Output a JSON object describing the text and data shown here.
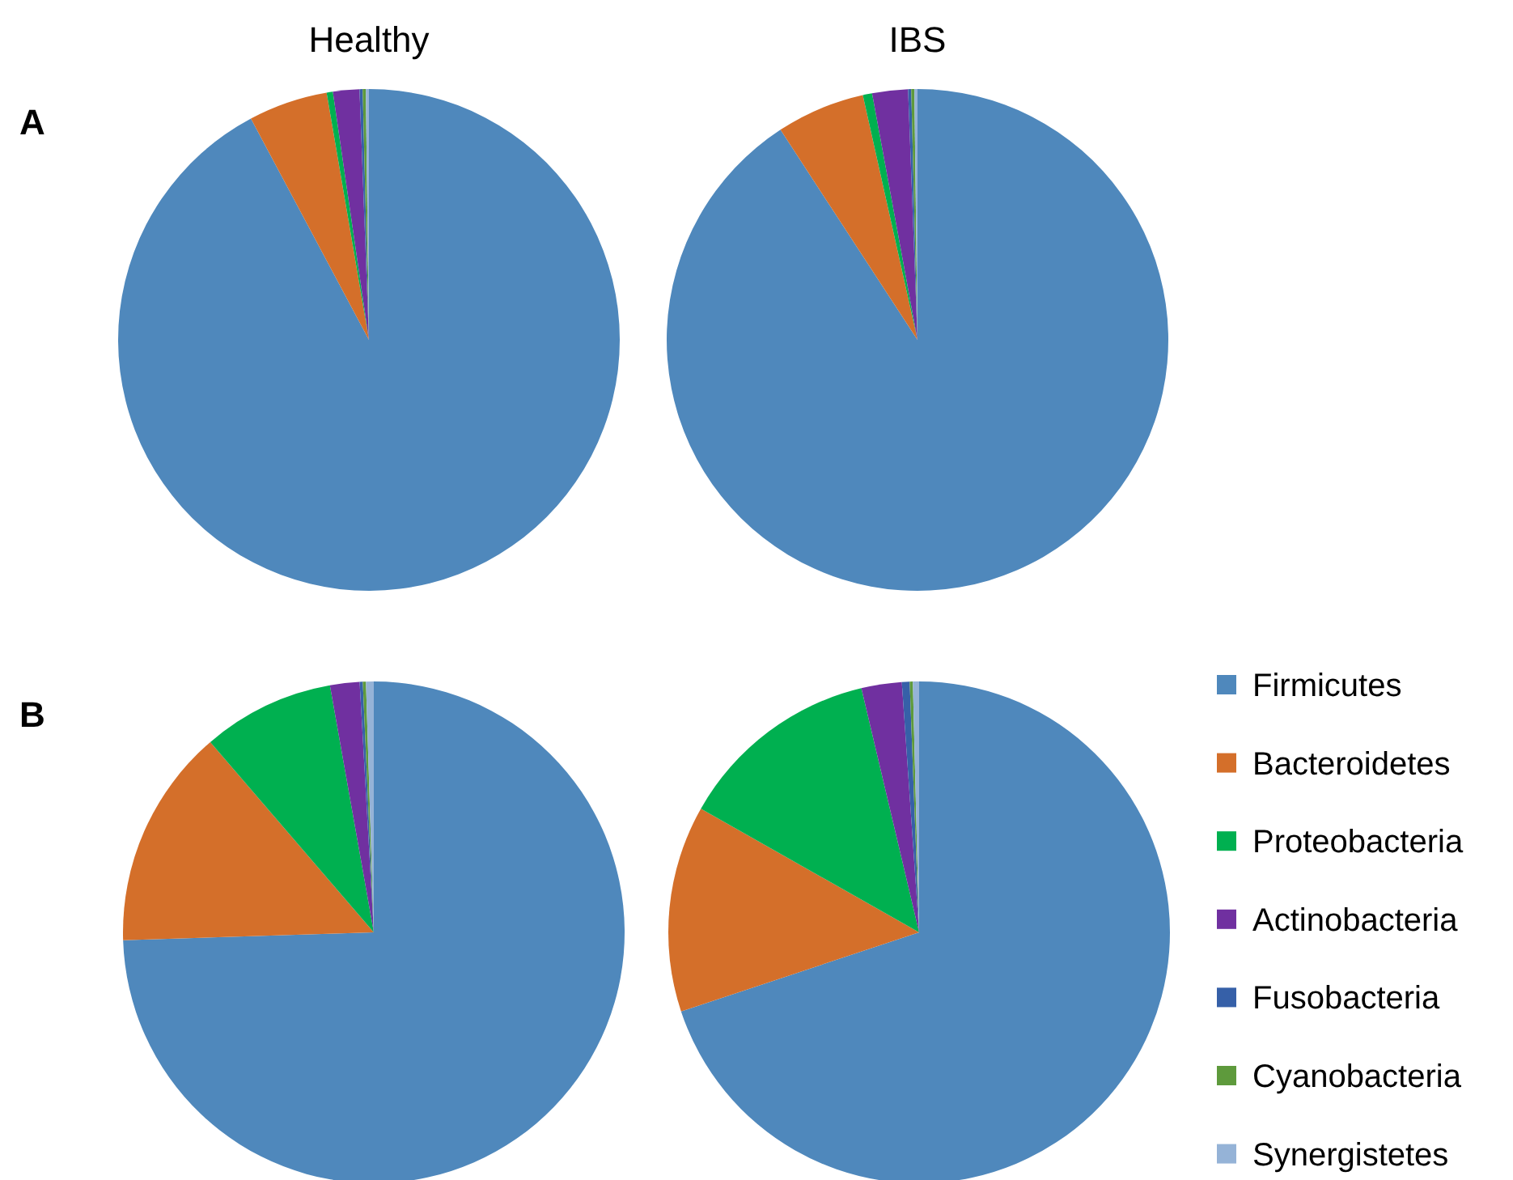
{
  "chart_data": [
    {
      "type": "pie",
      "title": "Healthy",
      "annotations": [
        "A"
      ],
      "categories": [
        null,
        null,
        null,
        null,
        null,
        null,
        null
      ],
      "values": [
        92.2,
        5.1,
        0.4,
        1.7,
        0.2,
        0.2,
        0.2
      ],
      "colors": [
        "#4f88bc",
        "#d46f2a",
        "#00b050",
        "#7030a0",
        "#3660a8",
        "#5e9a3c",
        "#95b3d7"
      ],
      "legend": false
    },
    {
      "type": "pie",
      "title": "IBS",
      "categories": [
        null,
        null,
        null,
        null,
        null,
        null,
        null
      ],
      "values": [
        90.8,
        5.7,
        0.6,
        2.3,
        0.2,
        0.2,
        0.2
      ],
      "colors": [
        "#4f88bc",
        "#d46f2a",
        "#00b050",
        "#7030a0",
        "#3660a8",
        "#5e9a3c",
        "#95b3d7"
      ],
      "legend": false
    },
    {
      "type": "pie",
      "annotations": [
        "B"
      ],
      "categories": [
        null,
        null,
        null,
        null,
        null,
        null,
        null
      ],
      "values": [
        74.5,
        14.2,
        8.5,
        1.9,
        0.2,
        0.2,
        0.5
      ],
      "colors": [
        "#4f88bc",
        "#d46f2a",
        "#00b050",
        "#7030a0",
        "#3660a8",
        "#5e9a3c",
        "#95b3d7"
      ],
      "legend": false
    },
    {
      "type": "pie",
      "categories": [
        "Firmicutes",
        "Bacteroidetes",
        "Proteobacteria",
        "Actinobacteria",
        "Fusobacteria",
        "Cyanobacteria",
        "Synergistetes"
      ],
      "values": [
        69.9,
        13.3,
        13.1,
        2.6,
        0.5,
        0.2,
        0.4
      ],
      "colors": [
        "#4f88bc",
        "#d46f2a",
        "#00b050",
        "#7030a0",
        "#3660a8",
        "#5e9a3c",
        "#95b3d7"
      ],
      "legend": "right"
    }
  ]
}
